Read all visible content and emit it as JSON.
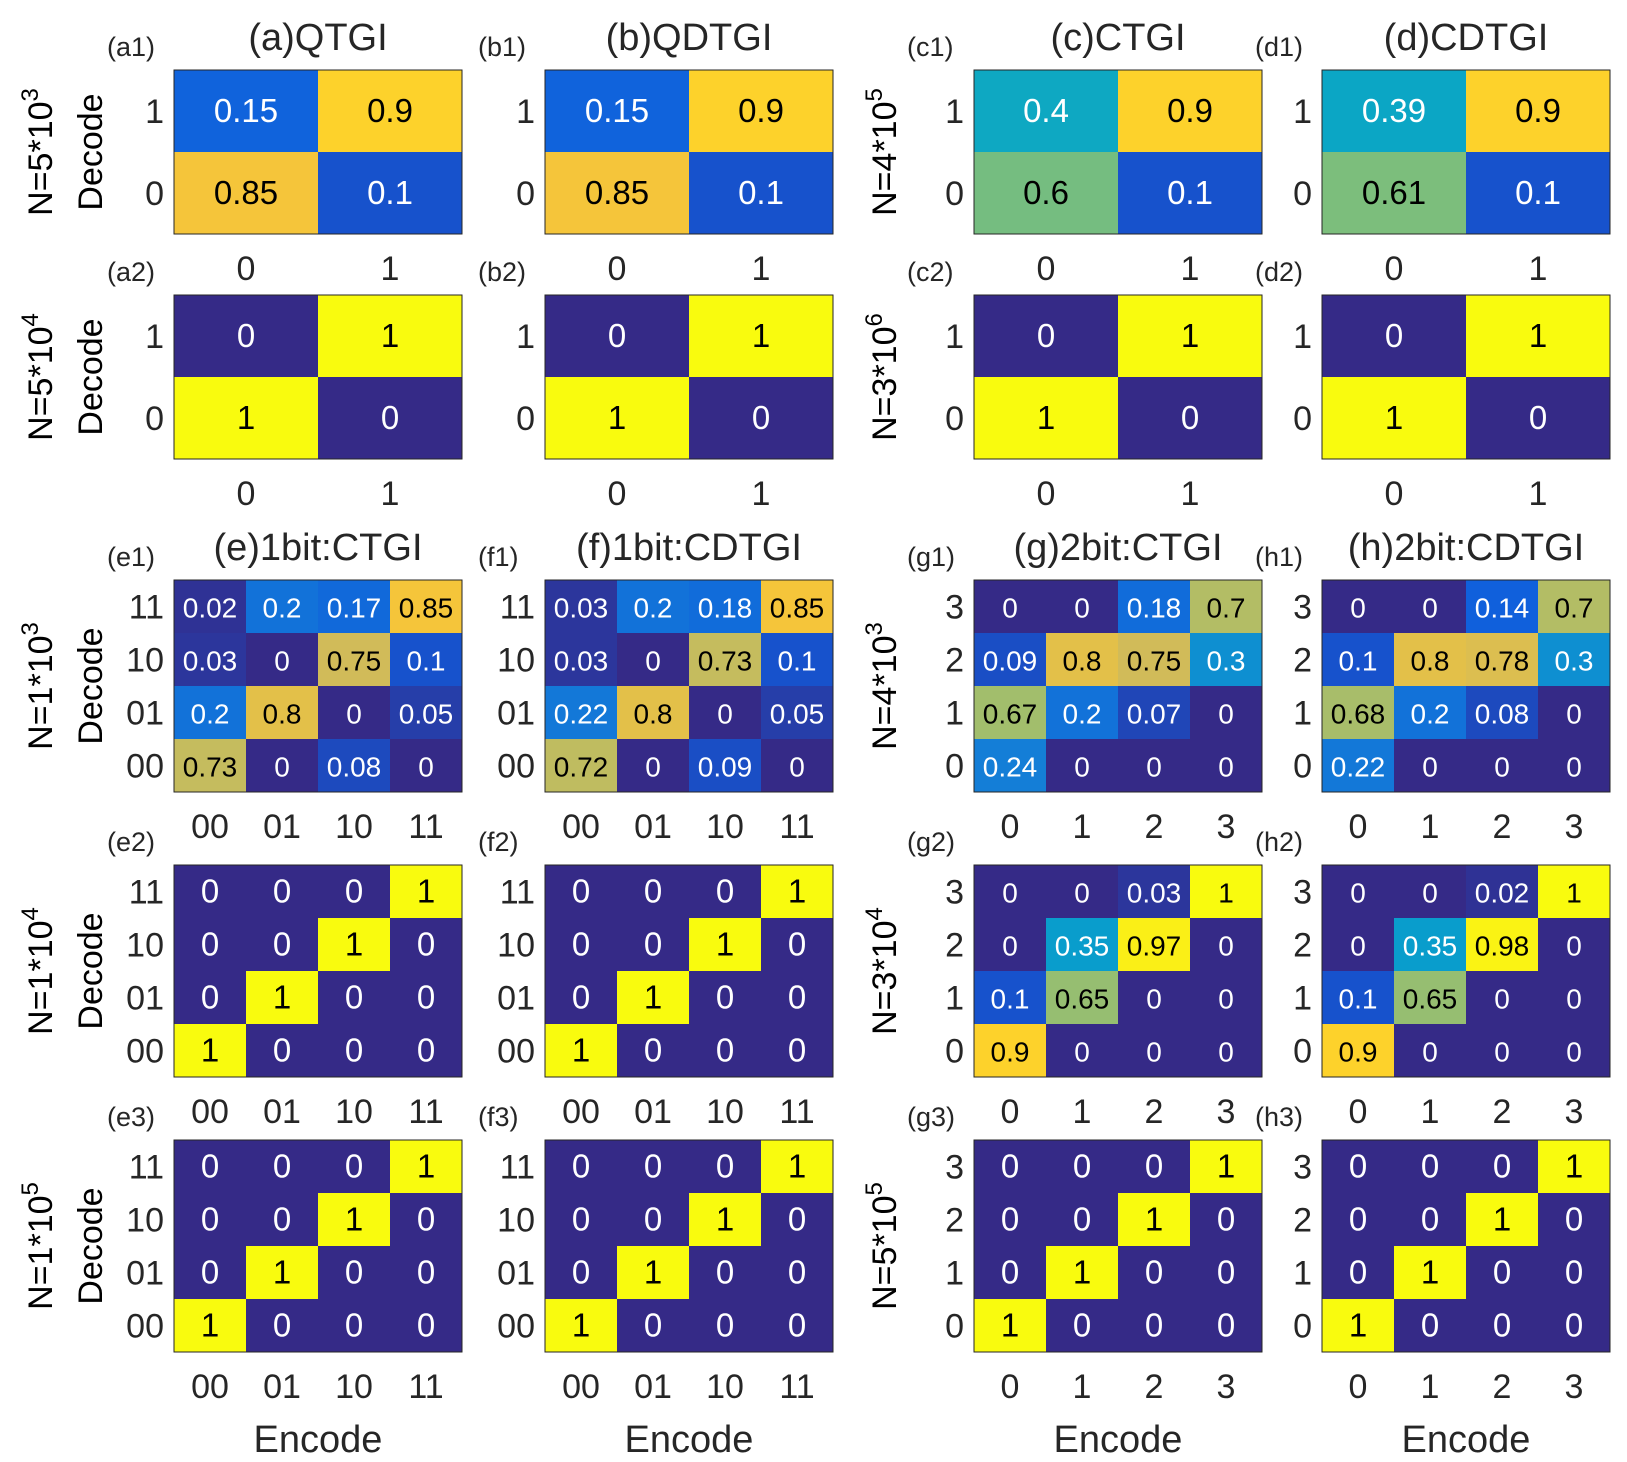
{
  "chart_data": [
    {
      "type": "heatmap",
      "id": "a1",
      "panel_label": "(a1)",
      "title": "(a)QTGI",
      "row_label": "N=5*10",
      "row_label_exp": "3",
      "ylabel": "Decode",
      "x_categories": [
        "0",
        "1"
      ],
      "y_categories": [
        "0",
        "1"
      ],
      "values": [
        [
          0.85,
          0.1
        ],
        [
          0.15,
          0.9
        ]
      ]
    },
    {
      "type": "heatmap",
      "id": "b1",
      "panel_label": "(b1)",
      "title": "(b)QDTGI",
      "row_label": "",
      "row_label_exp": "",
      "ylabel": "",
      "x_categories": [
        "0",
        "1"
      ],
      "y_categories": [
        "0",
        "1"
      ],
      "values": [
        [
          0.85,
          0.1
        ],
        [
          0.15,
          0.9
        ]
      ]
    },
    {
      "type": "heatmap",
      "id": "c1",
      "panel_label": "(c1)",
      "title": "(c)CTGI",
      "row_label": "N=4*10",
      "row_label_exp": "5",
      "ylabel": "",
      "x_categories": [
        "0",
        "1"
      ],
      "y_categories": [
        "0",
        "1"
      ],
      "values": [
        [
          0.6,
          0.1
        ],
        [
          0.4,
          0.9
        ]
      ]
    },
    {
      "type": "heatmap",
      "id": "d1",
      "panel_label": "(d1)",
      "title": "(d)CDTGI",
      "row_label": "",
      "row_label_exp": "",
      "ylabel": "",
      "x_categories": [
        "0",
        "1"
      ],
      "y_categories": [
        "0",
        "1"
      ],
      "values": [
        [
          0.61,
          0.1
        ],
        [
          0.39,
          0.9
        ]
      ]
    },
    {
      "type": "heatmap",
      "id": "a2",
      "panel_label": "(a2)",
      "title": "",
      "row_label": "N=5*10",
      "row_label_exp": "4",
      "ylabel": "Decode",
      "x_categories": [
        "0",
        "1"
      ],
      "y_categories": [
        "0",
        "1"
      ],
      "values": [
        [
          1,
          0
        ],
        [
          0,
          1
        ]
      ]
    },
    {
      "type": "heatmap",
      "id": "b2",
      "panel_label": "(b2)",
      "title": "",
      "row_label": "",
      "row_label_exp": "",
      "ylabel": "",
      "x_categories": [
        "0",
        "1"
      ],
      "y_categories": [
        "0",
        "1"
      ],
      "values": [
        [
          1,
          0
        ],
        [
          0,
          1
        ]
      ]
    },
    {
      "type": "heatmap",
      "id": "c2",
      "panel_label": "(c2)",
      "title": "",
      "row_label": "N=3*10",
      "row_label_exp": "6",
      "ylabel": "",
      "x_categories": [
        "0",
        "1"
      ],
      "y_categories": [
        "0",
        "1"
      ],
      "values": [
        [
          1,
          0
        ],
        [
          0,
          1
        ]
      ]
    },
    {
      "type": "heatmap",
      "id": "d2",
      "panel_label": "(d2)",
      "title": "",
      "row_label": "",
      "row_label_exp": "",
      "ylabel": "",
      "x_categories": [
        "0",
        "1"
      ],
      "y_categories": [
        "0",
        "1"
      ],
      "values": [
        [
          1,
          0
        ],
        [
          0,
          1
        ]
      ]
    },
    {
      "type": "heatmap",
      "id": "e1",
      "panel_label": "(e1)",
      "title": "(e)1bit:CTGI",
      "row_label": "N=1*10",
      "row_label_exp": "3",
      "ylabel": "Decode",
      "x_categories": [
        "00",
        "01",
        "10",
        "11"
      ],
      "y_categories": [
        "00",
        "01",
        "10",
        "11"
      ],
      "values": [
        [
          0.73,
          0,
          0.08,
          0
        ],
        [
          0.2,
          0.8,
          0,
          0.05
        ],
        [
          0.03,
          0,
          0.75,
          0.1
        ],
        [
          0.02,
          0.2,
          0.17,
          0.85
        ]
      ]
    },
    {
      "type": "heatmap",
      "id": "f1",
      "panel_label": "(f1)",
      "title": "(f)1bit:CDTGI",
      "row_label": "",
      "row_label_exp": "",
      "ylabel": "",
      "x_categories": [
        "00",
        "01",
        "10",
        "11"
      ],
      "y_categories": [
        "00",
        "01",
        "10",
        "11"
      ],
      "values": [
        [
          0.72,
          0,
          0.09,
          0
        ],
        [
          0.22,
          0.8,
          0,
          0.05
        ],
        [
          0.03,
          0,
          0.73,
          0.1
        ],
        [
          0.03,
          0.2,
          0.18,
          0.85
        ]
      ]
    },
    {
      "type": "heatmap",
      "id": "g1",
      "panel_label": "(g1)",
      "title": "(g)2bit:CTGI",
      "row_label": "N=4*10",
      "row_label_exp": "3",
      "ylabel": "",
      "x_categories": [
        "0",
        "1",
        "2",
        "3"
      ],
      "y_categories": [
        "0",
        "1",
        "2",
        "3"
      ],
      "values": [
        [
          0.24,
          0,
          0,
          0
        ],
        [
          0.67,
          0.2,
          0.07,
          0
        ],
        [
          0.09,
          0.8,
          0.75,
          0.3
        ],
        [
          0,
          0,
          0.18,
          0.7
        ]
      ]
    },
    {
      "type": "heatmap",
      "id": "h1",
      "panel_label": "(h1)",
      "title": "(h)2bit:CDTGI",
      "row_label": "",
      "row_label_exp": "",
      "ylabel": "",
      "x_categories": [
        "0",
        "1",
        "2",
        "3"
      ],
      "y_categories": [
        "0",
        "1",
        "2",
        "3"
      ],
      "values": [
        [
          0.22,
          0,
          0,
          0
        ],
        [
          0.68,
          0.2,
          0.08,
          0
        ],
        [
          0.1,
          0.8,
          0.78,
          0.3
        ],
        [
          0,
          0,
          0.14,
          0.7
        ]
      ]
    },
    {
      "type": "heatmap",
      "id": "e2",
      "panel_label": "(e2)",
      "title": "",
      "row_label": "N=1*10",
      "row_label_exp": "4",
      "ylabel": "Decode",
      "x_categories": [
        "00",
        "01",
        "10",
        "11"
      ],
      "y_categories": [
        "00",
        "01",
        "10",
        "11"
      ],
      "values": [
        [
          1,
          0,
          0,
          0
        ],
        [
          0,
          1,
          0,
          0
        ],
        [
          0,
          0,
          1,
          0
        ],
        [
          0,
          0,
          0,
          1
        ]
      ]
    },
    {
      "type": "heatmap",
      "id": "f2",
      "panel_label": "(f2)",
      "title": "",
      "row_label": "",
      "row_label_exp": "",
      "ylabel": "",
      "x_categories": [
        "00",
        "01",
        "10",
        "11"
      ],
      "y_categories": [
        "00",
        "01",
        "10",
        "11"
      ],
      "values": [
        [
          1,
          0,
          0,
          0
        ],
        [
          0,
          1,
          0,
          0
        ],
        [
          0,
          0,
          1,
          0
        ],
        [
          0,
          0,
          0,
          1
        ]
      ]
    },
    {
      "type": "heatmap",
      "id": "g2",
      "panel_label": "(g2)",
      "title": "",
      "row_label": "N=3*10",
      "row_label_exp": "4",
      "ylabel": "",
      "x_categories": [
        "0",
        "1",
        "2",
        "3"
      ],
      "y_categories": [
        "0",
        "1",
        "2",
        "3"
      ],
      "values": [
        [
          0.9,
          0,
          0,
          0
        ],
        [
          0.1,
          0.65,
          0,
          0
        ],
        [
          0,
          0.35,
          0.97,
          0
        ],
        [
          0,
          0,
          0.03,
          1
        ]
      ]
    },
    {
      "type": "heatmap",
      "id": "h2",
      "panel_label": "(h2)",
      "title": "",
      "row_label": "",
      "row_label_exp": "",
      "ylabel": "",
      "x_categories": [
        "0",
        "1",
        "2",
        "3"
      ],
      "y_categories": [
        "0",
        "1",
        "2",
        "3"
      ],
      "values": [
        [
          0.9,
          0,
          0,
          0
        ],
        [
          0.1,
          0.65,
          0,
          0
        ],
        [
          0,
          0.35,
          0.98,
          0
        ],
        [
          0,
          0,
          0.02,
          1
        ]
      ]
    },
    {
      "type": "heatmap",
      "id": "e3",
      "panel_label": "(e3)",
      "title": "",
      "row_label": "N=1*10",
      "row_label_exp": "5",
      "ylabel": "Decode",
      "xlabel": "Encode",
      "x_categories": [
        "00",
        "01",
        "10",
        "11"
      ],
      "y_categories": [
        "00",
        "01",
        "10",
        "11"
      ],
      "values": [
        [
          1,
          0,
          0,
          0
        ],
        [
          0,
          1,
          0,
          0
        ],
        [
          0,
          0,
          1,
          0
        ],
        [
          0,
          0,
          0,
          1
        ]
      ]
    },
    {
      "type": "heatmap",
      "id": "f3",
      "panel_label": "(f3)",
      "title": "",
      "row_label": "",
      "row_label_exp": "",
      "ylabel": "",
      "xlabel": "Encode",
      "x_categories": [
        "00",
        "01",
        "10",
        "11"
      ],
      "y_categories": [
        "00",
        "01",
        "10",
        "11"
      ],
      "values": [
        [
          1,
          0,
          0,
          0
        ],
        [
          0,
          1,
          0,
          0
        ],
        [
          0,
          0,
          1,
          0
        ],
        [
          0,
          0,
          0,
          1
        ]
      ]
    },
    {
      "type": "heatmap",
      "id": "g3",
      "panel_label": "(g3)",
      "title": "",
      "row_label": "N=5*10",
      "row_label_exp": "5",
      "ylabel": "",
      "xlabel": "Encode",
      "x_categories": [
        "0",
        "1",
        "2",
        "3"
      ],
      "y_categories": [
        "0",
        "1",
        "2",
        "3"
      ],
      "values": [
        [
          1,
          0,
          0,
          0
        ],
        [
          0,
          1,
          0,
          0
        ],
        [
          0,
          0,
          1,
          0
        ],
        [
          0,
          0,
          0,
          1
        ]
      ]
    },
    {
      "type": "heatmap",
      "id": "h3",
      "panel_label": "(h3)",
      "title": "",
      "row_label": "",
      "row_label_exp": "",
      "ylabel": "",
      "xlabel": "Encode",
      "x_categories": [
        "0",
        "1",
        "2",
        "3"
      ],
      "y_categories": [
        "0",
        "1",
        "2",
        "3"
      ],
      "values": [
        [
          1,
          0,
          0,
          0
        ],
        [
          0,
          1,
          0,
          0
        ],
        [
          0,
          0,
          1,
          0
        ],
        [
          0,
          0,
          0,
          1
        ]
      ]
    }
  ],
  "colormap": {
    "name": "parula",
    "range": [
      0,
      1
    ],
    "stops": [
      "#352a87",
      "#0f5cdd",
      "#1481d6",
      "#06a4ca",
      "#2eb7a4",
      "#87bf77",
      "#d1bb59",
      "#fec832",
      "#f9fb0e"
    ],
    "light_text_color": "#ffffff",
    "dark_text_color": "#000000"
  }
}
